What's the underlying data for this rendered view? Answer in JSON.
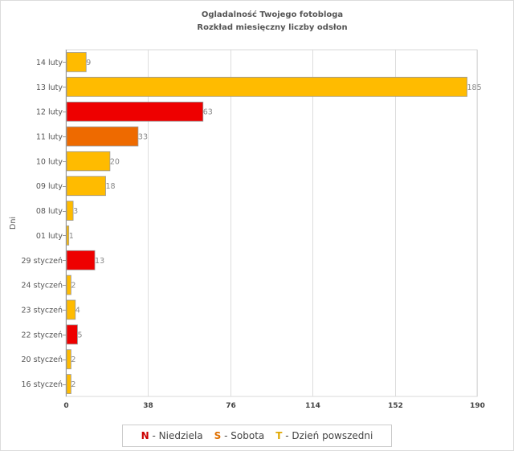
{
  "chart_data": {
    "type": "bar",
    "orientation": "horizontal",
    "title": "Ogladalność Twojego fotobloga",
    "subtitle": "Rozkład miesięczny liczby odsłon",
    "ylabel": "Dni",
    "xlabel": "",
    "xlim": [
      0,
      190
    ],
    "x_ticks": [
      "0",
      "38",
      "76",
      "114",
      "152",
      "190"
    ],
    "grid": true,
    "categories": [
      "14 luty",
      "13 luty",
      "12 luty",
      "11 luty",
      "10 luty",
      "09 luty",
      "08 luty",
      "01 luty",
      "29 styczeń",
      "24 styczeń",
      "23 styczeń",
      "22 styczeń",
      "20 styczeń",
      "16 styczeń"
    ],
    "values": [
      9,
      185,
      63,
      33,
      20,
      18,
      3,
      1,
      13,
      2,
      4,
      5,
      2,
      2
    ],
    "day_types": [
      "T",
      "T",
      "N",
      "S",
      "T",
      "T",
      "T",
      "T",
      "N",
      "T",
      "T",
      "N",
      "T",
      "T"
    ],
    "colors": {
      "N": "#ee0000",
      "S": "#ee6a00",
      "T": "#ffbb00"
    },
    "legend_position": "bottom-center"
  },
  "legend": {
    "items": [
      {
        "key": "N",
        "label": " - Niedziela",
        "color": "#cc0000"
      },
      {
        "key": "S",
        "label": " - Sobota",
        "color": "#e07000"
      },
      {
        "key": "T",
        "label": " - Dzień powszedni",
        "color": "#e0a800"
      }
    ]
  }
}
